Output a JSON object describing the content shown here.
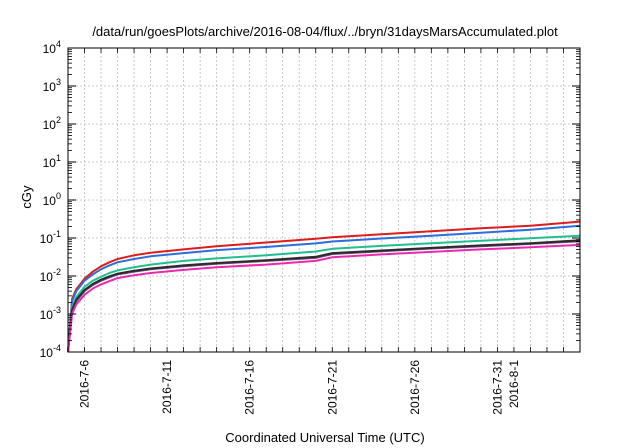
{
  "chart_data": {
    "type": "line",
    "title": "/data/run/goesPlots/archive/2016-08-04/flux/../bryn/31daysMarsAccumulated.plot",
    "xlabel": "Coordinated Universal Time (UTC)",
    "ylabel": "cGy",
    "yscale": "log",
    "ylim": [
      0.0001,
      10000
    ],
    "xlim": [
      "2016-07-05",
      "2016-08-05"
    ],
    "grid": true,
    "y_ticks": [
      {
        "base": "10",
        "exp": "-4"
      },
      {
        "base": "10",
        "exp": "-3"
      },
      {
        "base": "10",
        "exp": "-2"
      },
      {
        "base": "10",
        "exp": "-1"
      },
      {
        "base": "10",
        "exp": "0"
      },
      {
        "base": "10",
        "exp": "1"
      },
      {
        "base": "10",
        "exp": "2"
      },
      {
        "base": "10",
        "exp": "3"
      },
      {
        "base": "10",
        "exp": "4"
      }
    ],
    "x_ticks": [
      "2016-7-6",
      "2016-7-11",
      "2016-7-16",
      "2016-7-21",
      "2016-7-26",
      "2016-7-31",
      "2016-8-1"
    ],
    "x_tick_dates": [
      "2016-07-06",
      "2016-07-11",
      "2016-07-16",
      "2016-07-21",
      "2016-07-26",
      "2016-07-31",
      "2016-08-01"
    ],
    "x": [
      "2016-07-05T00:00",
      "2016-07-05T06:00",
      "2016-07-05T12:00",
      "2016-07-06T00:00",
      "2016-07-06T12:00",
      "2016-07-07T00:00",
      "2016-07-07T12:00",
      "2016-07-08T00:00",
      "2016-07-09T00:00",
      "2016-07-10T00:00",
      "2016-07-12T00:00",
      "2016-07-14T00:00",
      "2016-07-17T00:00",
      "2016-07-20T00:00",
      "2016-07-21T00:00",
      "2016-07-24T00:00",
      "2016-07-27T00:00",
      "2016-07-30T00:00",
      "2016-08-02T00:00",
      "2016-08-05T00:00"
    ],
    "series": [
      {
        "color": "#dd1c1c",
        "values": [
          0.0001,
          0.0025,
          0.0045,
          0.0085,
          0.013,
          0.018,
          0.023,
          0.028,
          0.035,
          0.041,
          0.05,
          0.061,
          0.076,
          0.095,
          0.105,
          0.125,
          0.15,
          0.18,
          0.21,
          0.27
        ]
      },
      {
        "color": "#2a6fdc",
        "values": [
          0.0001,
          0.0022,
          0.004,
          0.0075,
          0.011,
          0.015,
          0.019,
          0.023,
          0.028,
          0.033,
          0.04,
          0.048,
          0.058,
          0.072,
          0.081,
          0.097,
          0.115,
          0.138,
          0.165,
          0.21
        ]
      },
      {
        "color": "#1fbf8f",
        "values": [
          0.0001,
          0.0015,
          0.0028,
          0.0052,
          0.0075,
          0.0095,
          0.012,
          0.014,
          0.017,
          0.02,
          0.025,
          0.029,
          0.035,
          0.044,
          0.052,
          0.062,
          0.073,
          0.085,
          0.098,
          0.115
        ]
      },
      {
        "color": "#6e3f79",
        "values": [
          0.0001,
          0.0012,
          0.0022,
          0.004,
          0.0058,
          0.0075,
          0.0092,
          0.011,
          0.013,
          0.015,
          0.018,
          0.021,
          0.025,
          0.03,
          0.038,
          0.045,
          0.053,
          0.061,
          0.07,
          0.082
        ]
      },
      {
        "color": "#2b2b2b",
        "values": [
          0.0001,
          0.0013,
          0.0024,
          0.0043,
          0.0062,
          0.008,
          0.0098,
          0.0115,
          0.0138,
          0.0158,
          0.019,
          0.022,
          0.026,
          0.032,
          0.04,
          0.047,
          0.055,
          0.064,
          0.073,
          0.087
        ]
      },
      {
        "color": "#e82ab0",
        "values": [
          0.0001,
          0.001,
          0.0018,
          0.0032,
          0.0047,
          0.006,
          0.0073,
          0.0088,
          0.0105,
          0.012,
          0.0145,
          0.017,
          0.02,
          0.025,
          0.031,
          0.037,
          0.043,
          0.05,
          0.057,
          0.066
        ]
      }
    ]
  }
}
